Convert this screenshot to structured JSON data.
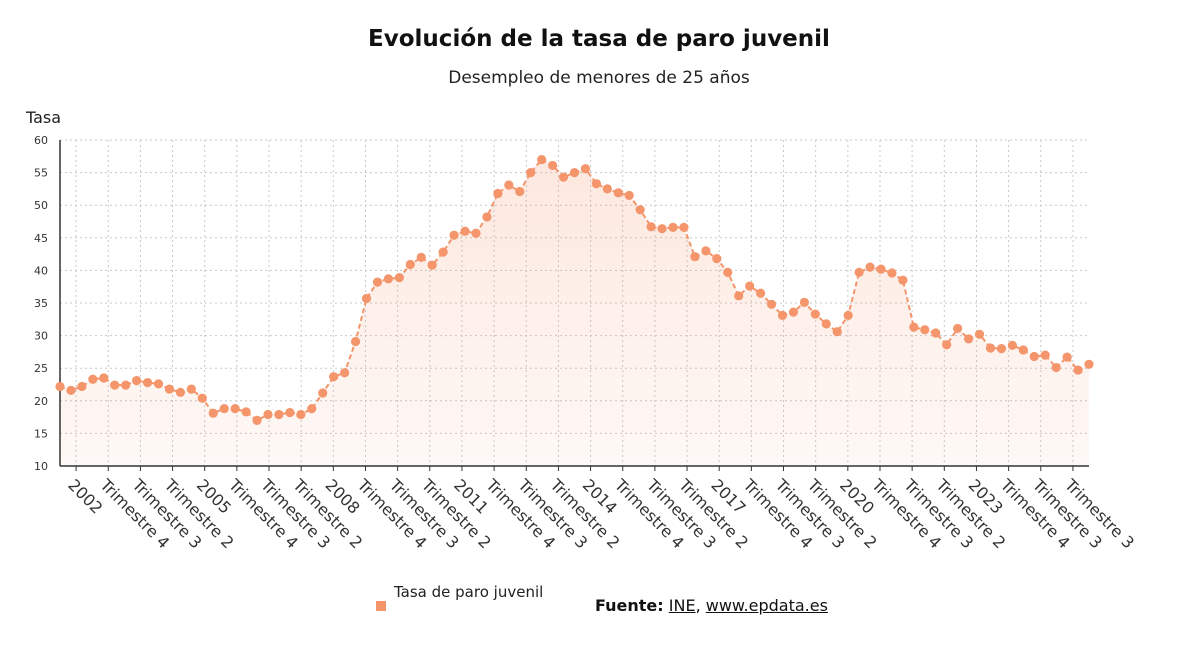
{
  "chart_data": {
    "type": "area",
    "title": "Evolución de la tasa de paro juvenil",
    "subtitle": "Desempleo de menores de 25 años",
    "ylabel": "Tasa",
    "xlabel": "",
    "ylim": [
      10,
      60
    ],
    "yticks": [
      10,
      15,
      20,
      25,
      30,
      35,
      40,
      45,
      50,
      55,
      60
    ],
    "grid": true,
    "legend_position": "bottom",
    "x_tick_labels": [
      "2002",
      "Trimestre 4",
      "Trimestre 3",
      "Trimestre 2",
      "2005",
      "Trimestre 4",
      "Trimestre 3",
      "Trimestre 2",
      "2008",
      "Trimestre 4",
      "Trimestre 3",
      "Trimestre 2",
      "2011",
      "Trimestre 4",
      "Trimestre 3",
      "Trimestre 2",
      "2014",
      "Trimestre 4",
      "Trimestre 3",
      "Trimestre 2",
      "2017",
      "Trimestre 4",
      "Trimestre 3",
      "Trimestre 2",
      "2020",
      "Trimestre 4",
      "Trimestre 3",
      "Trimestre 2",
      "2023",
      "Trimestre 4",
      "Trimestre 3",
      "Trimestre 3"
    ],
    "series": [
      {
        "name": "Tasa de paro juvenil",
        "color": "#f4956b",
        "values": [
          22.2,
          21.6,
          22.2,
          23.3,
          23.5,
          22.4,
          22.4,
          23.1,
          22.8,
          22.6,
          21.8,
          21.3,
          21.8,
          20.4,
          18.1,
          18.8,
          18.8,
          18.3,
          17.0,
          17.9,
          17.9,
          18.2,
          17.9,
          18.8,
          21.2,
          23.7,
          24.3,
          29.1,
          35.7,
          38.2,
          38.7,
          38.9,
          40.9,
          42.0,
          40.8,
          42.8,
          45.4,
          46.0,
          45.7,
          48.2,
          51.8,
          53.1,
          52.1,
          55.0,
          57.0,
          56.1,
          54.3,
          55.0,
          55.6,
          53.3,
          52.5,
          51.9,
          51.5,
          49.3,
          46.7,
          46.4,
          46.6,
          46.6,
          42.1,
          43.0,
          41.8,
          39.7,
          36.1,
          37.6,
          36.5,
          34.8,
          33.1,
          33.6,
          35.1,
          33.3,
          31.8,
          30.6,
          33.1,
          39.7,
          40.5,
          40.2,
          39.6,
          38.5,
          31.3,
          30.9,
          30.4,
          28.6,
          31.1,
          29.5,
          30.2,
          28.1,
          28.0,
          28.5,
          27.8,
          26.8,
          27.0,
          25.1,
          26.7,
          24.7,
          25.6
        ]
      }
    ]
  },
  "footer": {
    "source_label": "Fuente:",
    "source_ine": "INE",
    "source_sep": ",",
    "source_site": "www.epdata.es"
  }
}
